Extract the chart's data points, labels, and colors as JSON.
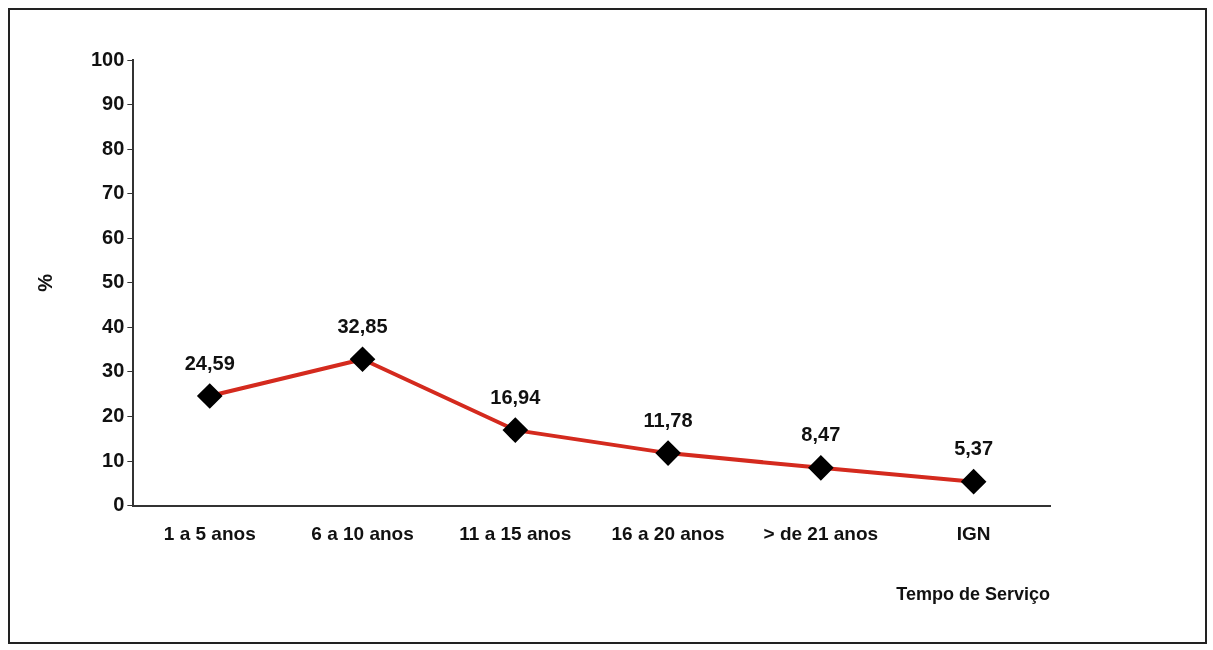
{
  "chart_data": {
    "type": "line",
    "xlabel": "Tempo de Serviço",
    "ylabel": "%",
    "categories": [
      "1 a 5 anos",
      "6 a 10 anos",
      "11 a 15 anos",
      "16 a 20 anos",
      "> de 21 anos",
      "IGN"
    ],
    "series": [
      {
        "color": "#d42a1e",
        "values": [
          24.59,
          32.85,
          16.94,
          11.78,
          8.47,
          5.37
        ],
        "value_labels": [
          "24,59",
          "32,85",
          "16,94",
          "11,78",
          "8,47",
          "5,37"
        ]
      }
    ],
    "ylim": [
      0,
      100
    ],
    "yticks": [
      0,
      10,
      20,
      30,
      40,
      50,
      60,
      70,
      80,
      90,
      100
    ],
    "grid": false,
    "legend": false,
    "marker": "diamond",
    "line_style": "solid"
  }
}
